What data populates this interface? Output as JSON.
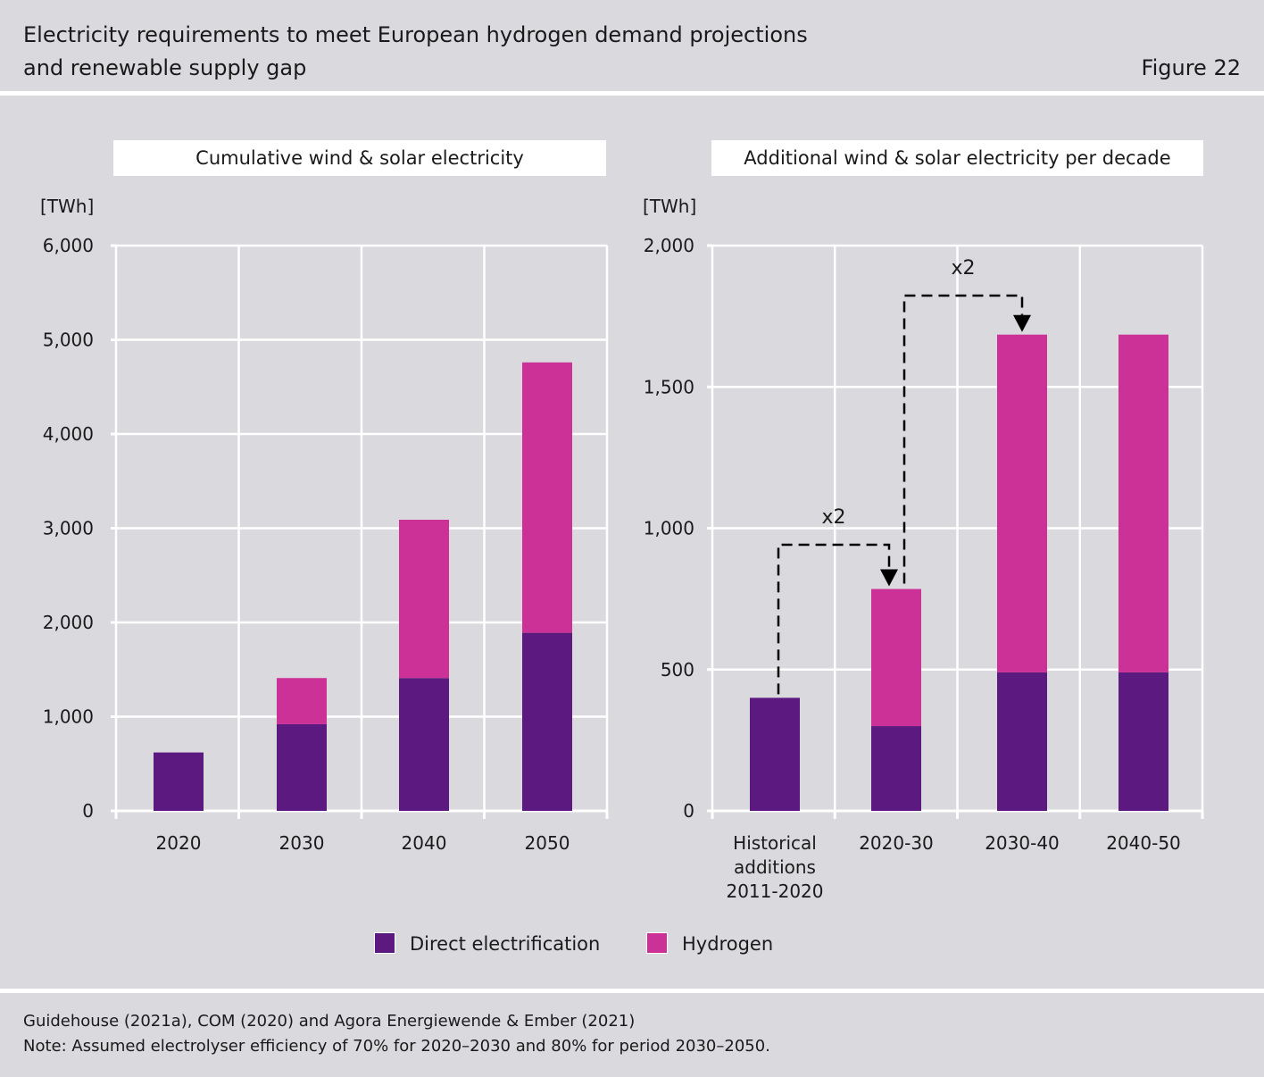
{
  "header": {
    "title_line1": "Electricity requirements to meet European hydrogen demand projections",
    "title_line2": "and renewable supply gap",
    "figure_label": "Figure 22"
  },
  "legend": {
    "direct_label": "Direct electrification",
    "hydrogen_label": "Hydrogen"
  },
  "colors": {
    "direct": "#5c1a80",
    "hydrogen": "#cb3196",
    "background": "#dad9de",
    "grid": "#ffffff"
  },
  "footer": {
    "source": "Guidehouse (2021a), COM (2020) and Agora Energiewende & Ember (2021)",
    "note": "Note: Assumed electrolyser efficiency of 70% for 2020–2030 and 80% for period 2030–2050."
  },
  "chart_data": [
    {
      "type": "bar",
      "stacked": true,
      "title": "Cumulative wind & solar electricity",
      "ylabel": "[TWh]",
      "ylim": [
        0,
        6000
      ],
      "yticks": [
        0,
        1000,
        2000,
        3000,
        4000,
        5000,
        6000
      ],
      "ytick_labels": [
        "0",
        "1,000",
        "2,000",
        "3,000",
        "4,000",
        "5,000",
        "6,000"
      ],
      "categories": [
        "2020",
        "2030",
        "2040",
        "2050"
      ],
      "series": [
        {
          "name": "Direct electrification",
          "values": [
            620,
            920,
            1410,
            1890
          ]
        },
        {
          "name": "Hydrogen",
          "values": [
            0,
            490,
            1680,
            2870
          ]
        }
      ],
      "grid": true
    },
    {
      "type": "bar",
      "stacked": true,
      "title": "Additional wind & solar electricity per decade",
      "ylabel": "[TWh]",
      "ylim": [
        0,
        2000
      ],
      "yticks": [
        0,
        500,
        1000,
        1500,
        2000
      ],
      "ytick_labels": [
        "0",
        "500",
        "1,000",
        "1,500",
        "2,000"
      ],
      "categories": [
        [
          "Historical",
          "additions",
          "2011-2020"
        ],
        [
          "2020-30"
        ],
        [
          "2030-40"
        ],
        [
          "2040-50"
        ]
      ],
      "series": [
        {
          "name": "Direct electrification",
          "values": [
            400,
            300,
            490,
            490
          ]
        },
        {
          "name": "Hydrogen",
          "values": [
            0,
            485,
            1195,
            1195
          ]
        }
      ],
      "annotations": [
        {
          "text": "x2",
          "from_category": 0,
          "to_category": 1
        },
        {
          "text": "x2",
          "from_category": 1,
          "to_category": 2
        }
      ],
      "grid": true
    }
  ]
}
